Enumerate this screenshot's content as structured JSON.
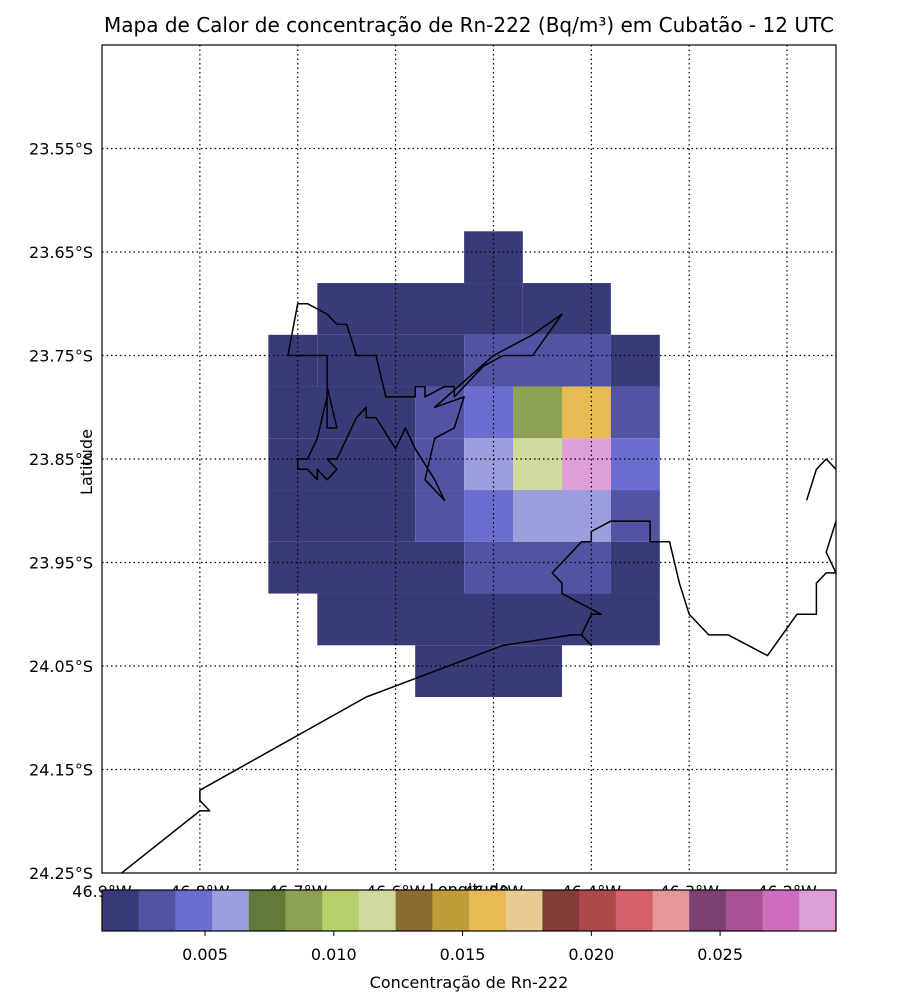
{
  "chart_data": {
    "type": "heatmap",
    "title": "Mapa de Calor de concentração de Rn-222 (Bq/m³) em Cubatão - 12 UTC",
    "xlabel": "Longitude",
    "ylabel": "Latitude",
    "xlim": [
      -46.9,
      -46.15
    ],
    "ylim": [
      -24.25,
      -23.45
    ],
    "grid": true,
    "x_ticks": [
      -46.9,
      -46.8,
      -46.7,
      -46.6,
      -46.5,
      -46.4,
      -46.3,
      -46.2
    ],
    "x_tick_labels": [
      "46.9°W",
      "46.8°W",
      "46.7°W",
      "46.6°W",
      "46.5°W",
      "46.4°W",
      "46.3°W",
      "46.2°W"
    ],
    "y_ticks": [
      -23.55,
      -23.65,
      -23.75,
      -23.85,
      -23.95,
      -24.05,
      -24.15,
      -24.25
    ],
    "y_tick_labels": [
      "23.55°S",
      "23.65°S",
      "23.75°S",
      "23.85°S",
      "23.95°S",
      "24.05°S",
      "24.15°S",
      "24.25°S"
    ],
    "colormap_colors": [
      "#393b79",
      "#5254a3",
      "#6b6ecf",
      "#9c9ede",
      "#637939",
      "#8ca252",
      "#b5cf6b",
      "#cedb9c",
      "#8c6d31",
      "#bd9e39",
      "#e7ba52",
      "#e7cb94",
      "#843c39",
      "#ad494a",
      "#d6616b",
      "#e7969c",
      "#7b4173",
      "#a55194",
      "#ce6dbd",
      "#de9ed6"
    ],
    "vmin": 0.001,
    "vmax": 0.0295,
    "colorbar_label": "Concentração de Rn-222",
    "colorbar_ticks": [
      0.005,
      0.01,
      0.015,
      0.02,
      0.025
    ],
    "colorbar_tick_labels": [
      "0.005",
      "0.010",
      "0.015",
      "0.020",
      "0.025"
    ],
    "cells": [
      {
        "lon": [
          -46.53,
          -46.47
        ],
        "lat": [
          -23.68,
          -23.63
        ],
        "value": 0.002
      },
      {
        "lon": [
          -46.68,
          -46.47
        ],
        "lat": [
          -23.73,
          -23.68
        ],
        "value": 0.002
      },
      {
        "lon": [
          -46.47,
          -46.38
        ],
        "lat": [
          -23.73,
          -23.68
        ],
        "value": 0.002
      },
      {
        "lon": [
          -46.73,
          -46.68
        ],
        "lat": [
          -23.78,
          -23.73
        ],
        "value": 0.002
      },
      {
        "lon": [
          -46.68,
          -46.53
        ],
        "lat": [
          -23.78,
          -23.73
        ],
        "value": 0.002
      },
      {
        "lon": [
          -46.53,
          -46.38
        ],
        "lat": [
          -23.78,
          -23.73
        ],
        "value": 0.003
      },
      {
        "lon": [
          -46.38,
          -46.33
        ],
        "lat": [
          -23.78,
          -23.73
        ],
        "value": 0.002
      },
      {
        "lon": [
          -46.73,
          -46.58
        ],
        "lat": [
          -23.83,
          -23.78
        ],
        "value": 0.002
      },
      {
        "lon": [
          -46.58,
          -46.53
        ],
        "lat": [
          -23.83,
          -23.78
        ],
        "value": 0.003
      },
      {
        "lon": [
          -46.53,
          -46.48
        ],
        "lat": [
          -23.83,
          -23.78
        ],
        "value": 0.005
      },
      {
        "lon": [
          -46.48,
          -46.43
        ],
        "lat": [
          -23.83,
          -23.78
        ],
        "value": 0.009
      },
      {
        "lon": [
          -46.43,
          -46.38
        ],
        "lat": [
          -23.83,
          -23.78
        ],
        "value": 0.016
      },
      {
        "lon": [
          -46.38,
          -46.33
        ],
        "lat": [
          -23.83,
          -23.78
        ],
        "value": 0.003
      },
      {
        "lon": [
          -46.73,
          -46.58
        ],
        "lat": [
          -23.88,
          -23.83
        ],
        "value": 0.002
      },
      {
        "lon": [
          -46.58,
          -46.53
        ],
        "lat": [
          -23.88,
          -23.83
        ],
        "value": 0.003
      },
      {
        "lon": [
          -46.53,
          -46.48
        ],
        "lat": [
          -23.88,
          -23.83
        ],
        "value": 0.006
      },
      {
        "lon": [
          -46.48,
          -46.43
        ],
        "lat": [
          -23.88,
          -23.83
        ],
        "value": 0.012
      },
      {
        "lon": [
          -46.43,
          -46.38
        ],
        "lat": [
          -23.88,
          -23.83
        ],
        "value": 0.029
      },
      {
        "lon": [
          -46.38,
          -46.33
        ],
        "lat": [
          -23.88,
          -23.83
        ],
        "value": 0.005
      },
      {
        "lon": [
          -46.73,
          -46.58
        ],
        "lat": [
          -23.93,
          -23.88
        ],
        "value": 0.002
      },
      {
        "lon": [
          -46.58,
          -46.53
        ],
        "lat": [
          -23.93,
          -23.88
        ],
        "value": 0.003
      },
      {
        "lon": [
          -46.53,
          -46.48
        ],
        "lat": [
          -23.93,
          -23.88
        ],
        "value": 0.005
      },
      {
        "lon": [
          -46.48,
          -46.38
        ],
        "lat": [
          -23.93,
          -23.88
        ],
        "value": 0.006
      },
      {
        "lon": [
          -46.38,
          -46.33
        ],
        "lat": [
          -23.93,
          -23.88
        ],
        "value": 0.003
      },
      {
        "lon": [
          -46.73,
          -46.53
        ],
        "lat": [
          -23.98,
          -23.93
        ],
        "value": 0.002
      },
      {
        "lon": [
          -46.53,
          -46.38
        ],
        "lat": [
          -23.98,
          -23.93
        ],
        "value": 0.003
      },
      {
        "lon": [
          -46.38,
          -46.33
        ],
        "lat": [
          -23.98,
          -23.93
        ],
        "value": 0.002
      },
      {
        "lon": [
          -46.68,
          -46.33
        ],
        "lat": [
          -24.03,
          -23.98
        ],
        "value": 0.002
      },
      {
        "lon": [
          -46.58,
          -46.43
        ],
        "lat": [
          -24.08,
          -24.03
        ],
        "value": 0.002
      }
    ],
    "coastlines": [
      [
        [
          -46.88,
          -24.25
        ],
        [
          -46.8,
          -24.19
        ],
        [
          -46.79,
          -24.19
        ],
        [
          -46.8,
          -24.18
        ],
        [
          -46.8,
          -24.17
        ],
        [
          -46.63,
          -24.08
        ],
        [
          -46.49,
          -24.03
        ],
        [
          -46.42,
          -24.02
        ],
        [
          -46.41,
          -24.02
        ],
        [
          -46.4,
          -24.03
        ],
        [
          -46.41,
          -24.02
        ],
        [
          -46.4,
          -24.0
        ],
        [
          -46.39,
          -24.0
        ],
        [
          -46.41,
          -23.99
        ],
        [
          -46.43,
          -23.98
        ],
        [
          -46.43,
          -23.97
        ],
        [
          -46.44,
          -23.96
        ],
        [
          -46.42,
          -23.94
        ],
        [
          -46.41,
          -23.93
        ],
        [
          -46.4,
          -23.93
        ],
        [
          -46.4,
          -23.92
        ],
        [
          -46.38,
          -23.91
        ],
        [
          -46.34,
          -23.91
        ],
        [
          -46.34,
          -23.93
        ],
        [
          -46.32,
          -23.93
        ],
        [
          -46.31,
          -23.97
        ],
        [
          -46.3,
          -24.0
        ],
        [
          -46.28,
          -24.02
        ],
        [
          -46.26,
          -24.02
        ],
        [
          -46.26,
          -24.02
        ],
        [
          -46.22,
          -24.04
        ],
        [
          -46.19,
          -24.0
        ],
        [
          -46.17,
          -24.0
        ],
        [
          -46.17,
          -23.97
        ],
        [
          -46.16,
          -23.96
        ],
        [
          -46.15,
          -23.96
        ],
        [
          -46.16,
          -23.94
        ],
        [
          -46.15,
          -23.91
        ],
        [
          -46.15,
          -23.91
        ]
      ],
      [
        [
          -46.71,
          -23.75
        ],
        [
          -46.7,
          -23.7
        ],
        [
          -46.69,
          -23.7
        ],
        [
          -46.67,
          -23.71
        ],
        [
          -46.66,
          -23.72
        ],
        [
          -46.65,
          -23.72
        ],
        [
          -46.64,
          -23.75
        ],
        [
          -46.62,
          -23.75
        ],
        [
          -46.61,
          -23.79
        ],
        [
          -46.58,
          -23.79
        ],
        [
          -46.58,
          -23.78
        ],
        [
          -46.57,
          -23.78
        ],
        [
          -46.57,
          -23.79
        ],
        [
          -46.55,
          -23.78
        ],
        [
          -46.54,
          -23.78
        ],
        [
          -46.54,
          -23.79
        ],
        [
          -46.52,
          -23.77
        ],
        [
          -46.51,
          -23.76
        ],
        [
          -46.49,
          -23.75
        ],
        [
          -46.48,
          -23.75
        ],
        [
          -46.46,
          -23.75
        ],
        [
          -46.43,
          -23.71
        ],
        [
          -46.46,
          -23.73
        ],
        [
          -46.5,
          -23.75
        ],
        [
          -46.56,
          -23.8
        ],
        [
          -46.53,
          -23.79
        ],
        [
          -46.54,
          -23.82
        ],
        [
          -46.56,
          -23.83
        ],
        [
          -46.57,
          -23.87
        ],
        [
          -46.55,
          -23.89
        ],
        [
          -46.56,
          -23.87
        ],
        [
          -46.58,
          -23.84
        ],
        [
          -46.59,
          -23.82
        ],
        [
          -46.6,
          -23.84
        ],
        [
          -46.62,
          -23.81
        ],
        [
          -46.63,
          -23.81
        ],
        [
          -46.63,
          -23.8
        ],
        [
          -46.64,
          -23.81
        ],
        [
          -46.65,
          -23.83
        ],
        [
          -46.66,
          -23.85
        ],
        [
          -46.67,
          -23.85
        ],
        [
          -46.66,
          -23.86
        ],
        [
          -46.67,
          -23.87
        ],
        [
          -46.68,
          -23.86
        ],
        [
          -46.68,
          -23.87
        ],
        [
          -46.69,
          -23.86
        ],
        [
          -46.7,
          -23.86
        ],
        [
          -46.7,
          -23.85
        ],
        [
          -46.69,
          -23.85
        ],
        [
          -46.68,
          -23.83
        ],
        [
          -46.67,
          -23.79
        ],
        [
          -46.67,
          -23.78
        ],
        [
          -46.66,
          -23.82
        ],
        [
          -46.67,
          -23.82
        ],
        [
          -46.67,
          -23.8
        ],
        [
          -46.67,
          -23.75
        ],
        [
          -46.69,
          -23.75
        ],
        [
          -46.71,
          -23.75
        ]
      ],
      [
        [
          -46.18,
          -23.89
        ],
        [
          -46.17,
          -23.86
        ],
        [
          -46.16,
          -23.85
        ],
        [
          -46.15,
          -23.86
        ]
      ]
    ]
  }
}
